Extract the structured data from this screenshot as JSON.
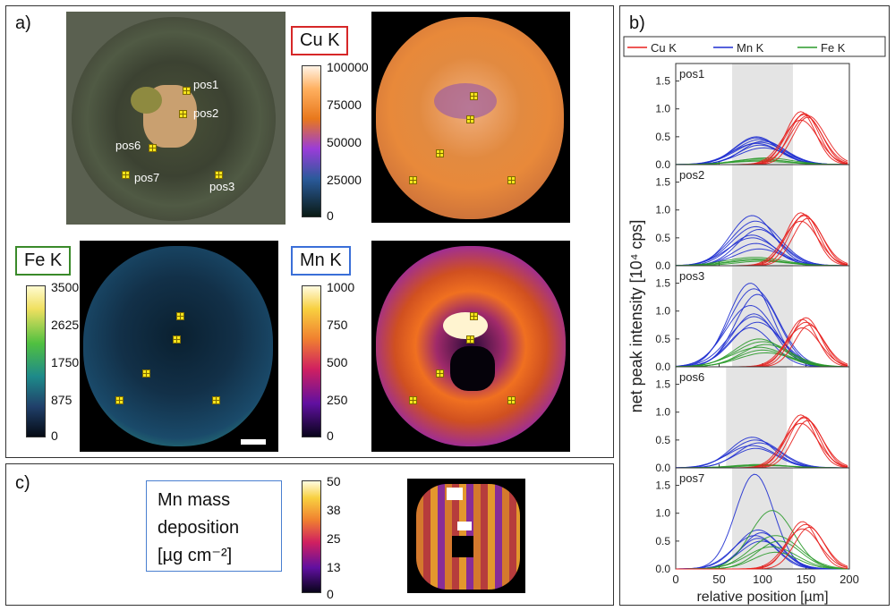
{
  "panel_a": {
    "label": "a)",
    "cu": {
      "title": "Cu K",
      "color": "#d62728",
      "ticks": [
        "100000",
        "75000",
        "50000",
        "25000",
        "0"
      ]
    },
    "fe": {
      "title": "Fe K",
      "color": "#3a8a2a",
      "ticks": [
        "3500",
        "2625",
        "1750",
        "875",
        "0"
      ]
    },
    "mn": {
      "title": "Mn K",
      "color": "#3a6fd8",
      "ticks": [
        "1000",
        "750",
        "500",
        "250",
        "0"
      ]
    },
    "positions": [
      "pos1",
      "pos2",
      "pos6",
      "pos7",
      "pos3"
    ]
  },
  "panel_b": {
    "label": "b)"
  },
  "panel_c": {
    "label": "c)",
    "legend_line1": "Mn mass",
    "legend_line2": "deposition",
    "legend_line3": "[µg cm⁻²]",
    "ticks": [
      "50",
      "38",
      "25",
      "13",
      "0"
    ]
  },
  "chart_data": {
    "type": "line",
    "xlabel": "relative position [µm]",
    "ylabel": "net peak intensity [10⁴ cps]",
    "xlim": [
      0,
      200
    ],
    "ylim": [
      0,
      1.75
    ],
    "x_ticks": [
      "0",
      "50",
      "100",
      "150",
      "200"
    ],
    "y_ticks": [
      "0.0",
      "0.5",
      "1.0",
      "1.5"
    ],
    "legend": [
      {
        "name": "Cu K",
        "color": "#e8201e"
      },
      {
        "name": "Mn K",
        "color": "#1f2fd0"
      },
      {
        "name": "Fe K",
        "color": "#2a9a2a"
      }
    ],
    "subplots": [
      {
        "label": "pos1",
        "shade": [
          65,
          135
        ],
        "cu": {
          "center": 148,
          "width": 17,
          "peaks": [
            0.95,
            0.9,
            0.85,
            0.8,
            0.92,
            0.88
          ]
        },
        "mn": {
          "center": 97,
          "width": 25,
          "peaks": [
            0.5,
            0.45,
            0.42,
            0.38,
            0.35,
            0.3,
            0.48,
            0.4
          ]
        },
        "fe": {
          "center": 100,
          "width": 30,
          "peaks": [
            0.1,
            0.08,
            0.12,
            0.06
          ]
        }
      },
      {
        "label": "pos2",
        "shade": [
          65,
          135
        ],
        "cu": {
          "center": 148,
          "width": 17,
          "peaks": [
            0.95,
            0.9,
            0.85,
            0.8,
            0.92
          ]
        },
        "mn": {
          "center": 92,
          "width": 25,
          "peaks": [
            0.9,
            0.8,
            0.65,
            0.5,
            0.4,
            0.3,
            0.55,
            0.7
          ]
        },
        "fe": {
          "center": 95,
          "width": 30,
          "peaks": [
            0.12,
            0.1,
            0.08,
            0.15
          ]
        }
      },
      {
        "label": "pos3",
        "shade": [
          65,
          135
        ],
        "cu": {
          "center": 150,
          "width": 17,
          "peaks": [
            0.85,
            0.8,
            0.75,
            0.7,
            0.88
          ]
        },
        "mn": {
          "center": 90,
          "width": 25,
          "peaks": [
            1.5,
            1.4,
            1.3,
            1.1,
            0.95,
            0.8,
            0.7,
            0.9
          ]
        },
        "fe": {
          "center": 100,
          "width": 28,
          "peaks": [
            0.5,
            0.45,
            0.4,
            0.35,
            0.3,
            0.25
          ]
        }
      },
      {
        "label": "pos6",
        "shade": [
          58,
          128
        ],
        "cu": {
          "center": 148,
          "width": 17,
          "peaks": [
            0.95,
            0.9,
            0.85,
            0.8,
            0.92
          ]
        },
        "mn": {
          "center": 92,
          "width": 25,
          "peaks": [
            0.55,
            0.5,
            0.45,
            0.4,
            0.35
          ]
        },
        "fe": {
          "center": 100,
          "width": 30,
          "peaks": [
            0.06,
            0.05,
            0.04
          ]
        }
      },
      {
        "label": "pos7",
        "shade": [
          65,
          135
        ],
        "cu": {
          "center": 150,
          "width": 17,
          "peaks": [
            0.85,
            0.8,
            0.75,
            0.72
          ]
        },
        "mn": {
          "center": 95,
          "width": 22,
          "peaks": [
            1.7,
            0.7,
            0.65,
            0.6,
            0.55,
            0.5
          ]
        },
        "fe": {
          "center": 115,
          "width": 25,
          "peaks": [
            1.05,
            0.6,
            0.5,
            0.4,
            0.3
          ]
        }
      }
    ]
  }
}
